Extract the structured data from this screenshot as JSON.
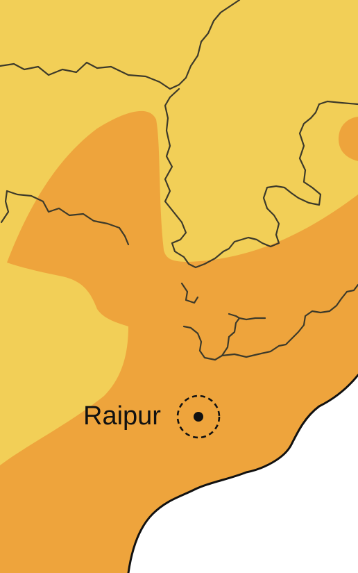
{
  "map": {
    "colors": {
      "low_zone": "#f2cf57",
      "high_zone": "#eea43c",
      "sea": "#ffffff",
      "border": "#3d3a2a",
      "marker": "#111111"
    },
    "city": {
      "name": "Raipur",
      "marker_icon": "dashed-circle-dot-icon"
    }
  }
}
